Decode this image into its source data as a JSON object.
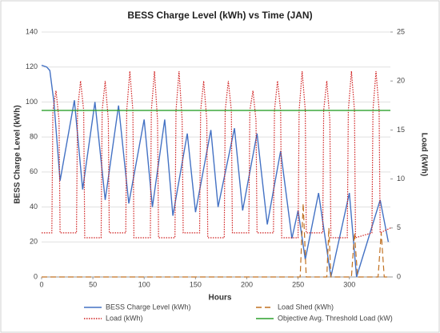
{
  "chart_data": {
    "type": "line",
    "title": "BESS Charge Level (kWh) vs Time (JAN)",
    "xlabel": "Hours",
    "ylabel": "BESS Charge Level (kWh)",
    "y2label": "Load (kWh)",
    "xlim": [
      0,
      340
    ],
    "xticks": [
      0,
      50,
      100,
      150,
      200,
      250,
      300
    ],
    "ylim": [
      0,
      140
    ],
    "yticks": [
      0,
      20,
      40,
      60,
      80,
      100,
      120,
      140
    ],
    "y2lim": [
      0,
      25
    ],
    "y2ticks": [
      0,
      5,
      10,
      15,
      20,
      25
    ],
    "grid": true,
    "legend": "bottom",
    "series": [
      {
        "name": "BESS Charge Level (kWh)",
        "color": "#4472c4",
        "style": "solid",
        "axis": "y",
        "x": [
          0,
          5,
          8,
          12,
          18,
          32,
          40,
          52,
          62,
          75,
          85,
          100,
          108,
          120,
          128,
          142,
          150,
          165,
          172,
          188,
          196,
          210,
          220,
          233,
          244,
          250,
          257,
          270,
          282,
          300,
          307,
          330,
          338
        ],
        "values": [
          121,
          120,
          118,
          100,
          55,
          101,
          50,
          100,
          44,
          98,
          42,
          90,
          40,
          90,
          35,
          82,
          37,
          84,
          40,
          85,
          38,
          82,
          30,
          72,
          22,
          38,
          10,
          48,
          0,
          48,
          0,
          44,
          20
        ]
      },
      {
        "name": "Load Shed (kWh)",
        "color": "#c07020",
        "style": "dashed",
        "axis": "y2",
        "x": [
          0,
          252,
          255,
          258,
          278,
          280,
          282,
          302,
          305,
          308,
          328,
          331,
          334,
          340
        ],
        "values": [
          0,
          0,
          7.5,
          0,
          0,
          5,
          0,
          0,
          4.5,
          0,
          0,
          4.5,
          0,
          0
        ]
      },
      {
        "name": "Load (kWh)",
        "color": "#d02020",
        "style": "dotted",
        "axis": "y2",
        "x": [
          0,
          10,
          11,
          14,
          17,
          18,
          34,
          35,
          38,
          41,
          42,
          58,
          59,
          62,
          65,
          66,
          82,
          83,
          86,
          89,
          90,
          106,
          107,
          110,
          113,
          114,
          130,
          131,
          134,
          137,
          138,
          154,
          155,
          158,
          161,
          162,
          178,
          179,
          182,
          185,
          186,
          202,
          203,
          206,
          209,
          210,
          226,
          227,
          230,
          233,
          234,
          250,
          251,
          254,
          257,
          258,
          274,
          275,
          278,
          281,
          282,
          298,
          299,
          302,
          305,
          306,
          322,
          323,
          326,
          329,
          330,
          340
        ],
        "values": [
          4.5,
          4.5,
          17,
          19,
          16,
          4.5,
          4.5,
          17,
          20,
          17,
          4,
          4,
          17,
          20,
          16,
          4.5,
          4.5,
          17,
          21,
          17,
          4,
          4,
          17,
          21,
          16,
          4,
          4,
          17,
          21,
          16,
          4.5,
          4.5,
          17,
          20,
          16,
          4,
          4,
          17,
          20,
          17,
          4.5,
          4.5,
          17,
          19,
          16,
          4.5,
          4.5,
          17,
          20,
          17,
          4,
          4,
          17,
          21,
          17,
          4.5,
          4.5,
          17,
          20,
          16,
          4,
          4,
          17,
          21,
          17,
          4,
          4.5,
          17,
          21,
          17,
          4.5,
          5
        ]
      },
      {
        "name": "Objective Avg. Threshold Load (kW)",
        "color": "#2ca02c",
        "style": "solid",
        "axis": "y2",
        "x": [
          0,
          340
        ],
        "values": [
          17,
          17
        ]
      }
    ]
  }
}
